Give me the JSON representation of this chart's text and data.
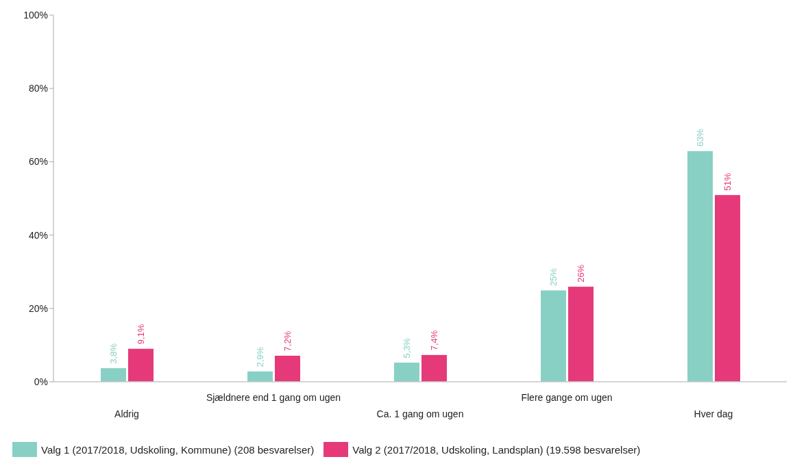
{
  "chart_data": {
    "type": "bar",
    "categories": [
      "Aldrig",
      "Sjældnere end 1 gang om ugen",
      "Ca. 1 gang om ugen",
      "Flere gange om ugen",
      "Hver dag"
    ],
    "series": [
      {
        "name": "Valg 1 (2017/2018, Udskoling, Kommune) (208 besvarelser)",
        "color": "#88d0c4",
        "values": [
          3.8,
          2.9,
          5.3,
          25,
          63
        ],
        "value_labels": [
          "3,8%",
          "2,9%",
          "5,3%",
          "25%",
          "63%"
        ]
      },
      {
        "name": "Valg 2 (2017/2018, Udskoling, Landsplan) (19.598 besvarelser)",
        "color": "#e5397a",
        "values": [
          9.1,
          7.2,
          7.4,
          26,
          51
        ],
        "value_labels": [
          "9,1%",
          "7,2%",
          "7,4%",
          "26%",
          "51%"
        ]
      }
    ],
    "ylim": [
      0,
      100
    ],
    "yticks": [
      {
        "value": 0,
        "label": "0%"
      },
      {
        "value": 20,
        "label": "20%"
      },
      {
        "value": 40,
        "label": "40%"
      },
      {
        "value": 60,
        "label": "60%"
      },
      {
        "value": 80,
        "label": "80%"
      },
      {
        "value": 100,
        "label": "100%"
      }
    ],
    "grid": false,
    "legend": "bottom left"
  }
}
